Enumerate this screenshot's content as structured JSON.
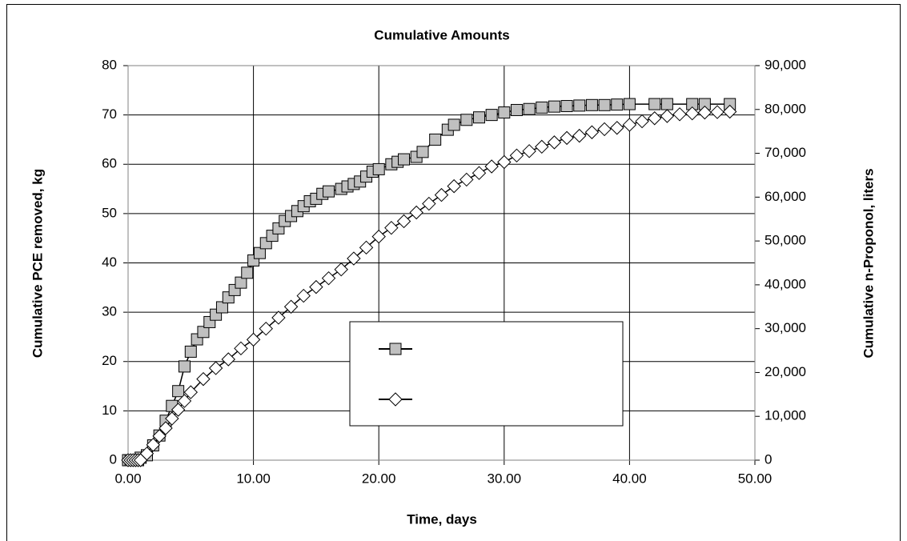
{
  "chart_data": {
    "type": "line",
    "title": "Cumulative Amounts",
    "xlabel": "Time, days",
    "ylabel": "Cumulative PCE removed, kg",
    "y2label": "Cumulative n-Proponol, liters",
    "xlim": [
      0,
      50
    ],
    "xticks": [
      {
        "value": 0,
        "label": "0.00"
      },
      {
        "value": 10,
        "label": "10.00"
      },
      {
        "value": 20,
        "label": "20.00"
      },
      {
        "value": 30,
        "label": "30.00"
      },
      {
        "value": 40,
        "label": "40.00"
      },
      {
        "value": 50,
        "label": "50.00"
      }
    ],
    "ylim": [
      0,
      80
    ],
    "yticks": [
      0,
      10,
      20,
      30,
      40,
      50,
      60,
      70,
      80
    ],
    "y2lim": [
      0,
      90000
    ],
    "y2ticks": [
      0,
      {
        "value": 10000,
        "label": "10,000"
      },
      {
        "value": 20000,
        "label": "20,000"
      },
      {
        "value": 30000,
        "label": "30,000"
      },
      {
        "value": 40000,
        "label": "40,000"
      },
      {
        "value": 50000,
        "label": "50,000"
      },
      {
        "value": 60000,
        "label": "60,000"
      },
      {
        "value": 70000,
        "label": "70,000"
      },
      {
        "value": 80000,
        "label": "80,000"
      },
      {
        "value": 90000,
        "label": "90,000"
      }
    ],
    "grid": true,
    "legend": "center",
    "series": [
      {
        "marker": "square",
        "color": "#c0c0c0",
        "axis": "y",
        "x": [
          0,
          0.2,
          0.4,
          0.6,
          0.8,
          1.0,
          1.5,
          2,
          2.5,
          3,
          3.5,
          4,
          4.5,
          5,
          5.5,
          6,
          6.5,
          7,
          7.5,
          8,
          8.5,
          9,
          9.5,
          10,
          10.5,
          11,
          11.5,
          12,
          12.5,
          13,
          13.5,
          14,
          14.5,
          15,
          15.5,
          16,
          17,
          17.5,
          18,
          18.5,
          19,
          19.5,
          20,
          21,
          21.5,
          22,
          23,
          23.5,
          24.5,
          25.5,
          26,
          27,
          28,
          29,
          30,
          31,
          32,
          33,
          34,
          35,
          36,
          37,
          38,
          39,
          40,
          42,
          43,
          45,
          46,
          48
        ],
        "values": [
          0,
          0,
          0,
          0,
          0,
          0.5,
          1,
          3,
          5,
          8,
          11,
          14,
          19,
          22,
          24.5,
          26,
          28,
          29.5,
          31,
          33,
          34.5,
          36,
          38,
          40.5,
          42,
          44,
          45.5,
          47,
          48.5,
          49.5,
          50.5,
          51.5,
          52.5,
          53,
          54,
          54.5,
          55,
          55.5,
          56,
          56.5,
          57.5,
          58.5,
          59,
          60,
          60.5,
          61,
          61.5,
          62.5,
          65,
          67,
          68,
          69,
          69.5,
          70,
          70.5,
          71,
          71.2,
          71.5,
          71.7,
          71.8,
          71.9,
          72,
          72,
          72.1,
          72.2,
          72.2,
          72.2,
          72.2,
          72.2,
          72.2
        ]
      },
      {
        "marker": "diamond",
        "color": "#ffffff",
        "axis": "y2",
        "x": [
          0,
          0.2,
          0.4,
          0.6,
          0.8,
          1.0,
          1.5,
          2,
          2.5,
          3,
          3.5,
          4,
          4.5,
          5,
          6,
          7,
          8,
          9,
          10,
          11,
          12,
          13,
          14,
          15,
          16,
          17,
          18,
          19,
          20,
          21,
          22,
          23,
          24,
          25,
          26,
          27,
          28,
          29,
          30,
          31,
          32,
          33,
          34,
          35,
          36,
          37,
          38,
          39,
          40,
          41,
          42,
          43,
          44,
          45,
          46,
          47,
          48
        ],
        "values": [
          0,
          0,
          0,
          0,
          0,
          0,
          1500,
          3500,
          5500,
          7300,
          9500,
          11500,
          13500,
          15500,
          18500,
          21000,
          23000,
          25500,
          27500,
          30000,
          32500,
          35000,
          37500,
          39500,
          41500,
          43500,
          46000,
          48500,
          51000,
          53000,
          54500,
          56500,
          58500,
          60500,
          62500,
          64000,
          65500,
          67000,
          68000,
          69500,
          70500,
          71500,
          72500,
          73500,
          74000,
          74800,
          75500,
          75800,
          76500,
          77300,
          78000,
          78500,
          78900,
          79100,
          79300,
          79400,
          79500
        ]
      }
    ]
  }
}
